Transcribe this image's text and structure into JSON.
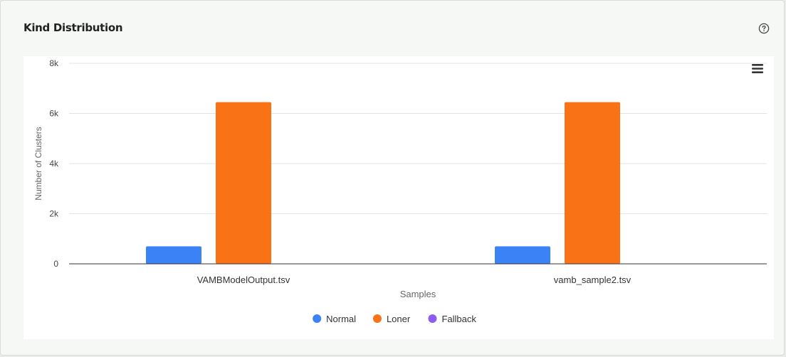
{
  "card": {
    "title": "Kind Distribution",
    "help_icon": "question-circle-icon",
    "menu_icon": "hamburger-menu-icon"
  },
  "chart_data": {
    "type": "bar",
    "categories": [
      "VAMBModelOutput.tsv",
      "vamb_sample2.tsv"
    ],
    "series": [
      {
        "name": "Normal",
        "color": "#3b82f6",
        "values": [
          700,
          700
        ]
      },
      {
        "name": "Loner",
        "color": "#f97316",
        "values": [
          6450,
          6450
        ]
      },
      {
        "name": "Fallback",
        "color": "#8b5cf6",
        "values": [
          0,
          0
        ]
      }
    ],
    "xlabel": "Samples",
    "ylabel": "Number of Clusters",
    "ylim": [
      0,
      8000
    ],
    "yticks": [
      0,
      2000,
      4000,
      6000,
      8000
    ],
    "ytick_labels": [
      "0",
      "2k",
      "4k",
      "6k",
      "8k"
    ],
    "grid": true,
    "legend": "bottom-center"
  }
}
